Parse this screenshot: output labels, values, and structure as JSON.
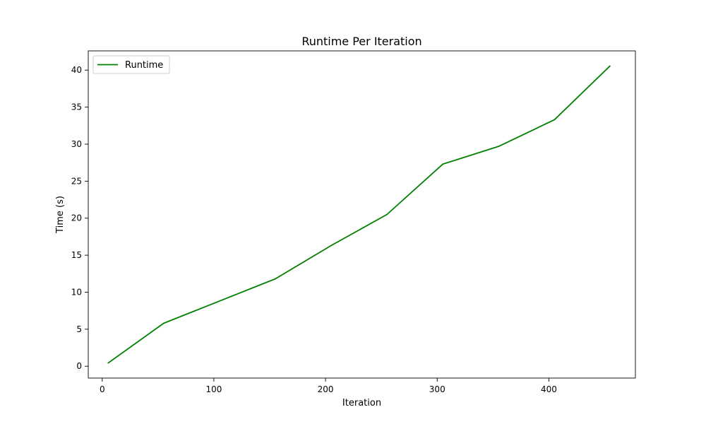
{
  "chart_data": {
    "type": "line",
    "title": "Runtime Per Iteration",
    "xlabel": "Iteration",
    "ylabel": "Time (s)",
    "xlim": [
      -12.5,
      477.5
    ],
    "ylim": [
      -1.6,
      42.6
    ],
    "xticks": [
      0,
      100,
      200,
      300,
      400
    ],
    "yticks": [
      0,
      5,
      10,
      15,
      20,
      25,
      30,
      35,
      40
    ],
    "grid": false,
    "legend_position": "top-left",
    "series": [
      {
        "name": "Runtime",
        "color": "#008000",
        "x": [
          5,
          55,
          105,
          155,
          205,
          255,
          305,
          355,
          405,
          455
        ],
        "y": [
          0.4,
          5.8,
          8.8,
          11.8,
          16.3,
          20.5,
          27.3,
          29.7,
          33.3,
          40.6
        ]
      }
    ]
  }
}
